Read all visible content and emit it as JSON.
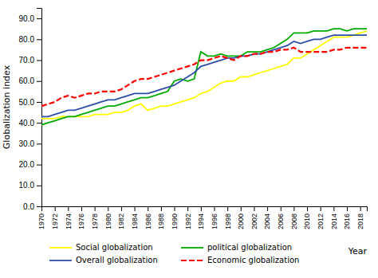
{
  "chart_data": {
    "type": "line",
    "x": [
      1970,
      1971,
      1972,
      1973,
      1974,
      1975,
      1976,
      1977,
      1978,
      1979,
      1980,
      1981,
      1982,
      1983,
      1984,
      1985,
      1986,
      1987,
      1988,
      1989,
      1990,
      1991,
      1992,
      1993,
      1994,
      1995,
      1996,
      1997,
      1998,
      1999,
      2000,
      2001,
      2002,
      2003,
      2004,
      2005,
      2006,
      2007,
      2008,
      2009,
      2010,
      2011,
      2012,
      2013,
      2014,
      2015,
      2016,
      2017,
      2018,
      2019
    ],
    "series": [
      {
        "name": "Social globalization",
        "color": "#FFFF00",
        "line_style": "solid",
        "values": [
          42,
          42,
          42,
          43,
          43,
          43,
          43,
          43,
          44,
          44,
          44,
          45,
          45,
          46,
          48,
          49,
          46,
          47,
          48,
          48,
          49,
          50,
          51,
          52,
          54,
          55,
          57,
          59,
          60,
          60,
          62,
          62,
          63,
          64,
          65,
          66,
          67,
          68,
          71,
          71,
          73,
          75,
          77,
          79,
          81,
          81,
          81,
          82,
          83,
          84
        ]
      },
      {
        "name": "political globalization",
        "color": "#00AA00",
        "line_style": "solid",
        "values": [
          39,
          40,
          41,
          42,
          43,
          43,
          44,
          45,
          46,
          47,
          48,
          48,
          49,
          50,
          51,
          52,
          52,
          53,
          54,
          55,
          60,
          61,
          60,
          61,
          74,
          72,
          72,
          73,
          72,
          72,
          72,
          74,
          74,
          74,
          75,
          76,
          78,
          80,
          83,
          83,
          83,
          84,
          84,
          84,
          85,
          85,
          84,
          85,
          85,
          85
        ]
      },
      {
        "name": "Overall globalization",
        "color": "#2E4DA8",
        "line_style": "solid",
        "values": [
          43,
          43,
          44,
          45,
          46,
          46,
          47,
          48,
          49,
          50,
          51,
          51,
          52,
          53,
          54,
          54,
          54,
          55,
          56,
          57,
          58,
          60,
          62,
          64,
          67,
          68,
          69,
          70,
          71,
          71,
          72,
          72,
          73,
          73,
          74,
          75,
          76,
          77,
          79,
          78,
          79,
          80,
          80,
          81,
          82,
          82,
          82,
          82,
          82,
          82
        ]
      },
      {
        "name": "Economic globalization",
        "color": "#FF0000",
        "line_style": "dashed",
        "values": [
          48,
          49,
          50,
          52,
          53,
          52,
          53,
          54,
          54,
          55,
          55,
          55,
          56,
          58,
          60,
          61,
          61,
          62,
          63,
          64,
          65,
          66,
          67,
          68,
          70,
          70,
          71,
          72,
          71,
          70,
          72,
          72,
          73,
          73,
          74,
          74,
          75,
          75,
          76,
          74,
          74,
          74,
          74,
          74,
          75,
          75,
          76,
          76,
          76,
          76
        ]
      }
    ],
    "x_label": "Year",
    "y_label": "Globalization index",
    "xlim": [
      1970,
      2019
    ],
    "xticks": [
      1970,
      1972,
      1974,
      1976,
      1978,
      1980,
      1982,
      1984,
      1986,
      1988,
      1990,
      1992,
      1994,
      1996,
      1998,
      2000,
      2002,
      2004,
      2006,
      2008,
      2010,
      2012,
      2014,
      2016,
      2018
    ],
    "ylim": [
      0.0,
      95.0
    ],
    "yticks": [
      {
        "value": 0,
        "label": "0.0"
      },
      {
        "value": 10,
        "label": "10.0"
      },
      {
        "value": 20,
        "label": "20.0"
      },
      {
        "value": 30,
        "label": "30.0"
      },
      {
        "value": 40,
        "label": "40.0"
      },
      {
        "value": 50,
        "label": "50.0"
      },
      {
        "value": 60,
        "label": "60.0"
      },
      {
        "value": 70,
        "label": "70.0"
      },
      {
        "value": 80,
        "label": "80.0"
      },
      {
        "value": 90,
        "label": "90.0"
      }
    ],
    "grid": false,
    "legend": "bottom"
  }
}
